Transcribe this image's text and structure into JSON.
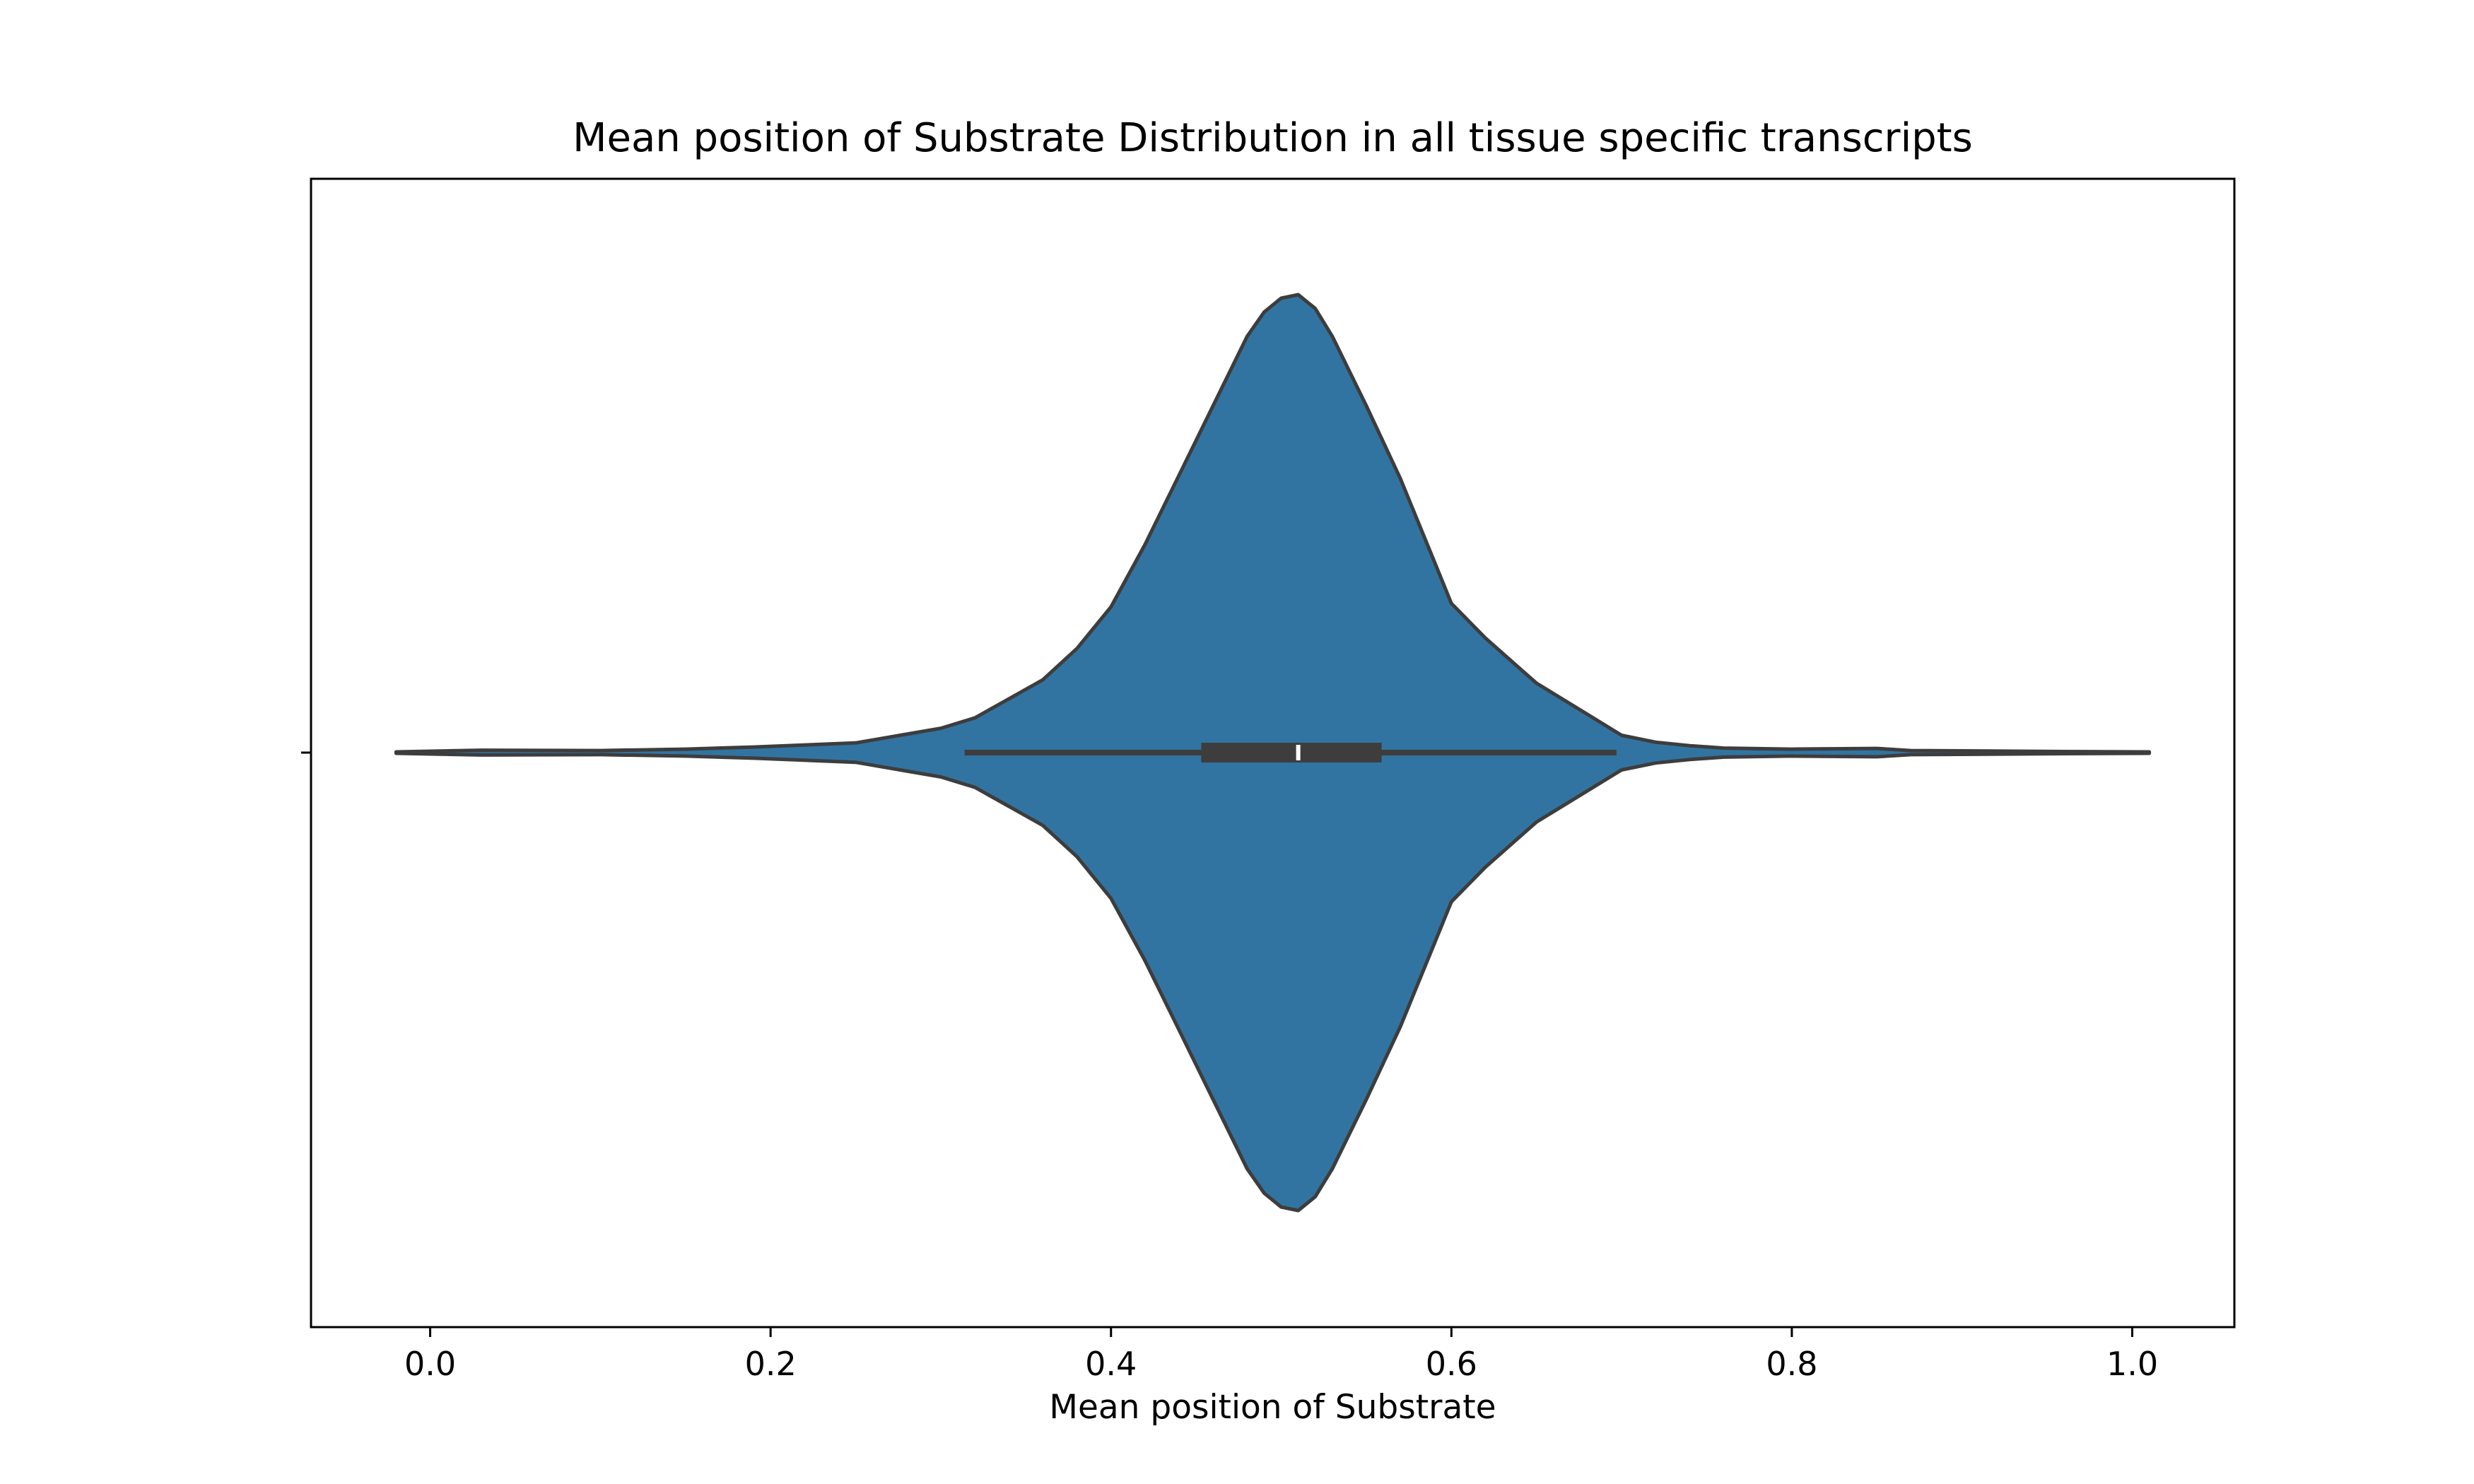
{
  "chart_data": {
    "type": "violin",
    "title": "Mean position of Substrate Distribution in all tissue specific transcripts",
    "xlabel": "Mean position of Substrate",
    "ylabel": "",
    "xlim": [
      -0.07,
      1.06
    ],
    "xticks": [
      0.0,
      0.2,
      0.4,
      0.6,
      0.8,
      1.0
    ],
    "xtick_labels": [
      "0.0",
      "0.2",
      "0.4",
      "0.6",
      "0.8",
      "1.0"
    ],
    "grid": false,
    "orientation": "horizontal",
    "fill_color": "#3274a1",
    "edge_color": "#3d3d3d",
    "box": {
      "whisker_low": 0.314,
      "q1": 0.453,
      "median": 0.51,
      "q3": 0.559,
      "whisker_high": 0.697
    },
    "density_profile": {
      "x": [
        -0.02,
        0.03,
        0.1,
        0.15,
        0.19,
        0.25,
        0.3,
        0.32,
        0.34,
        0.36,
        0.38,
        0.4,
        0.42,
        0.44,
        0.46,
        0.48,
        0.49,
        0.5,
        0.51,
        0.52,
        0.53,
        0.55,
        0.57,
        0.59,
        0.6,
        0.62,
        0.65,
        0.68,
        0.7,
        0.72,
        0.74,
        0.76,
        0.8,
        0.85,
        0.87,
        0.93,
        0.96,
        1.01
      ],
      "density": [
        0.002,
        0.007,
        0.006,
        0.01,
        0.016,
        0.028,
        0.07,
        0.1,
        0.155,
        0.21,
        0.3,
        0.42,
        0.6,
        0.8,
        1.0,
        1.2,
        1.27,
        1.31,
        1.32,
        1.28,
        1.2,
        1.0,
        0.79,
        0.55,
        0.43,
        0.33,
        0.2,
        0.11,
        0.05,
        0.03,
        0.02,
        0.013,
        0.01,
        0.012,
        0.006,
        0.004,
        0.003,
        0.002
      ]
    }
  }
}
